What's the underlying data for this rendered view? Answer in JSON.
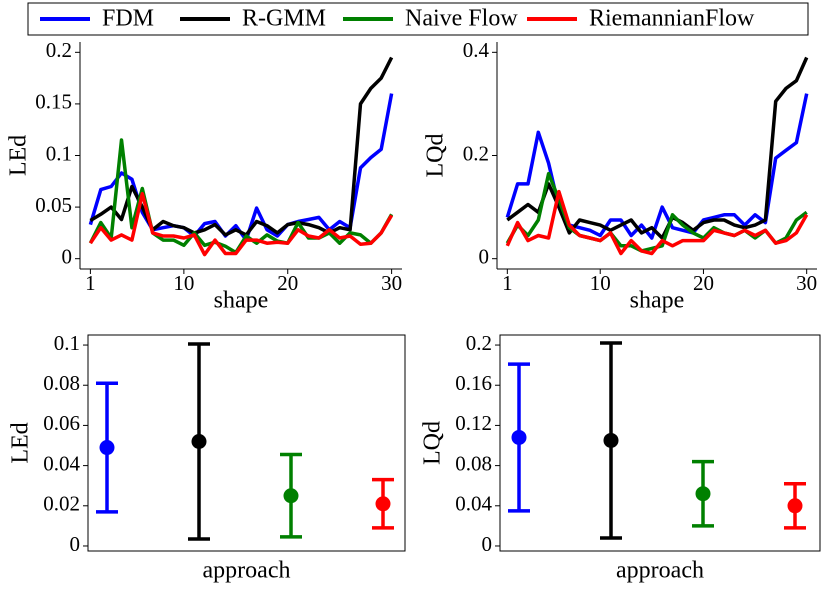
{
  "chart_data": [
    {
      "type": "line",
      "xlabel": "shape",
      "ylabel": "LEd",
      "x": [
        1,
        2,
        3,
        4,
        5,
        6,
        7,
        8,
        9,
        10,
        11,
        12,
        13,
        14,
        15,
        16,
        17,
        18,
        19,
        20,
        21,
        22,
        23,
        24,
        25,
        26,
        27,
        28,
        29,
        30
      ],
      "xlim": [
        0,
        31
      ],
      "ylim": [
        -0.01,
        0.21
      ],
      "xticks": [
        1,
        10,
        20,
        30
      ],
      "yticks": [
        0,
        0.05,
        0.1,
        0.15,
        0.2
      ],
      "series": [
        {
          "name": "FDM",
          "color": "#0000ff",
          "values": [
            0.033,
            0.067,
            0.07,
            0.083,
            0.077,
            0.045,
            0.028,
            0.03,
            0.032,
            0.03,
            0.022,
            0.034,
            0.036,
            0.022,
            0.032,
            0.018,
            0.049,
            0.028,
            0.022,
            0.033,
            0.036,
            0.038,
            0.04,
            0.028,
            0.036,
            0.03,
            0.088,
            0.098,
            0.106,
            0.16
          ]
        },
        {
          "name": "R-GMM",
          "color": "#000000",
          "values": [
            0.037,
            0.043,
            0.05,
            0.038,
            0.07,
            0.05,
            0.028,
            0.036,
            0.032,
            0.03,
            0.025,
            0.028,
            0.033,
            0.023,
            0.028,
            0.023,
            0.036,
            0.032,
            0.025,
            0.033,
            0.035,
            0.033,
            0.03,
            0.025,
            0.03,
            0.028,
            0.15,
            0.165,
            0.175,
            0.195
          ]
        },
        {
          "name": "Naive Flow",
          "color": "#008000",
          "values": [
            0.015,
            0.035,
            0.02,
            0.115,
            0.03,
            0.068,
            0.025,
            0.018,
            0.018,
            0.013,
            0.025,
            0.013,
            0.016,
            0.012,
            0.006,
            0.022,
            0.015,
            0.023,
            0.017,
            0.015,
            0.035,
            0.02,
            0.02,
            0.025,
            0.015,
            0.025,
            0.023,
            0.015,
            0.025,
            0.043
          ]
        },
        {
          "name": "RiemannianFlow",
          "color": "#ff0000",
          "values": [
            0.015,
            0.03,
            0.018,
            0.023,
            0.018,
            0.063,
            0.025,
            0.022,
            0.022,
            0.02,
            0.023,
            0.004,
            0.018,
            0.005,
            0.005,
            0.018,
            0.018,
            0.015,
            0.016,
            0.015,
            0.028,
            0.022,
            0.02,
            0.028,
            0.02,
            0.022,
            0.014,
            0.015,
            0.025,
            0.042
          ]
        }
      ]
    },
    {
      "type": "line",
      "xlabel": "shape",
      "ylabel": "LQd",
      "x": [
        1,
        2,
        3,
        4,
        5,
        6,
        7,
        8,
        9,
        10,
        11,
        12,
        13,
        14,
        15,
        16,
        17,
        18,
        19,
        20,
        21,
        22,
        23,
        24,
        25,
        26,
        27,
        28,
        29,
        30
      ],
      "xlim": [
        0,
        31
      ],
      "ylim": [
        -0.02,
        0.42
      ],
      "xticks": [
        1,
        10,
        20,
        30
      ],
      "yticks": [
        0,
        0.2,
        0.4
      ],
      "series": [
        {
          "color": "#0000ff",
          "values": [
            0.08,
            0.145,
            0.145,
            0.245,
            0.185,
            0.1,
            0.065,
            0.06,
            0.055,
            0.045,
            0.075,
            0.075,
            0.045,
            0.065,
            0.04,
            0.1,
            0.06,
            0.055,
            0.05,
            0.075,
            0.08,
            0.085,
            0.085,
            0.065,
            0.085,
            0.07,
            0.195,
            0.21,
            0.225,
            0.32
          ]
        },
        {
          "color": "#000000",
          "values": [
            0.075,
            0.09,
            0.105,
            0.09,
            0.145,
            0.1,
            0.05,
            0.075,
            0.07,
            0.065,
            0.055,
            0.065,
            0.075,
            0.05,
            0.06,
            0.04,
            0.08,
            0.07,
            0.055,
            0.07,
            0.075,
            0.075,
            0.065,
            0.06,
            0.065,
            0.075,
            0.305,
            0.33,
            0.345,
            0.39
          ]
        },
        {
          "color": "#008000",
          "values": [
            0.03,
            0.065,
            0.045,
            0.075,
            0.165,
            0.115,
            0.06,
            0.045,
            0.04,
            0.035,
            0.05,
            0.025,
            0.025,
            0.015,
            0.02,
            0.025,
            0.085,
            0.065,
            0.05,
            0.04,
            0.06,
            0.05,
            0.045,
            0.055,
            0.04,
            0.055,
            0.03,
            0.04,
            0.075,
            0.09
          ]
        },
        {
          "color": "#ff0000",
          "values": [
            0.025,
            0.07,
            0.035,
            0.045,
            0.04,
            0.13,
            0.065,
            0.045,
            0.04,
            0.035,
            0.05,
            0.01,
            0.035,
            0.015,
            0.01,
            0.035,
            0.025,
            0.035,
            0.035,
            0.035,
            0.055,
            0.05,
            0.045,
            0.055,
            0.045,
            0.055,
            0.03,
            0.035,
            0.05,
            0.085
          ]
        }
      ]
    },
    {
      "type": "errorbar",
      "xlabel": "approach",
      "ylabel": "LEd",
      "ylim": [
        -0.0025,
        0.105
      ],
      "yticks": [
        0,
        0.02,
        0.04,
        0.06,
        0.08,
        0.1
      ],
      "series": [
        {
          "color": "#0000ff",
          "values": [
            0.049
          ],
          "errors": [
            0.032
          ]
        },
        {
          "color": "#000000",
          "values": [
            0.052
          ],
          "errors": [
            0.0485
          ]
        },
        {
          "color": "#008000",
          "values": [
            0.025
          ],
          "errors": [
            0.0205
          ]
        },
        {
          "color": "#ff0000",
          "values": [
            0.021
          ],
          "errors": [
            0.012
          ]
        }
      ]
    },
    {
      "type": "errorbar",
      "xlabel": "approach",
      "ylabel": "LQd",
      "ylim": [
        -0.005,
        0.21
      ],
      "yticks": [
        0,
        0.04,
        0.08,
        0.12,
        0.16,
        0.2
      ],
      "series": [
        {
          "color": "#0000ff",
          "values": [
            0.108
          ],
          "errors": [
            0.073
          ]
        },
        {
          "color": "#000000",
          "values": [
            0.105
          ],
          "errors": [
            0.097
          ]
        },
        {
          "color": "#008000",
          "values": [
            0.052
          ],
          "errors": [
            0.032
          ]
        },
        {
          "color": "#ff0000",
          "values": [
            0.04
          ],
          "errors": [
            0.022
          ]
        }
      ]
    }
  ]
}
